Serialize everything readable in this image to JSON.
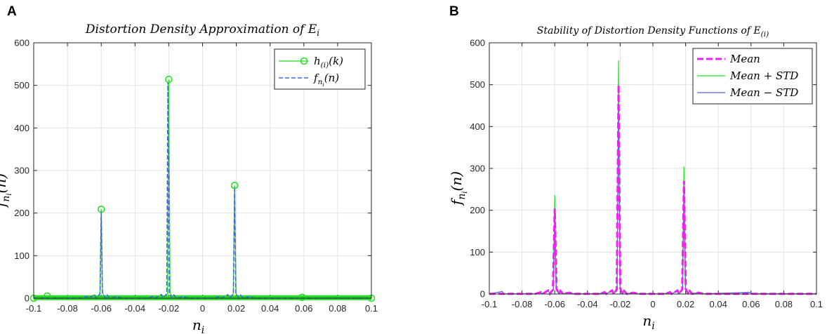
{
  "chart_data": [
    {
      "panel": "A",
      "type": "line",
      "title": "Distortion Density Approximation of E_i",
      "xlabel": "n_i",
      "ylabel": "f_{n_i}(n)",
      "xlim": [
        -0.1,
        0.1
      ],
      "ylim": [
        0,
        600
      ],
      "grid": true,
      "legend_position": "top-right",
      "x_ticks": [
        "-0.1",
        "-0.08",
        "-0.06",
        "-0.04",
        "-0.02",
        "0",
        "0.02",
        "0.04",
        "0.06",
        "0.08",
        "0.1"
      ],
      "y_ticks": [
        "0",
        "100",
        "200",
        "300",
        "400",
        "500",
        "600"
      ],
      "legend": [
        {
          "key": "hk",
          "label": "h_(i)(k)",
          "color": "#22dd22",
          "style": "solid-circle"
        },
        {
          "key": "fn",
          "label": "f_{n_i}(n)",
          "color": "#4466dd",
          "style": "dashed"
        }
      ],
      "series": [
        {
          "name": "h_(i)(k)",
          "color": "#22dd22",
          "x": [
            -0.092,
            -0.06,
            -0.02,
            0.019,
            0.059
          ],
          "values": [
            5,
            209,
            514,
            265,
            2
          ]
        },
        {
          "name": "f_{n_i}(n)",
          "color": "#4466dd",
          "x": [
            -0.06,
            -0.0205,
            0.019
          ],
          "values": [
            205,
            508,
            262
          ]
        }
      ]
    },
    {
      "panel": "B",
      "type": "line",
      "title": "Stability of Distortion Density Functions of E_(i)",
      "xlabel": "n_i",
      "ylabel": "f_{n_i}(n)",
      "xlim": [
        -0.1,
        0.1
      ],
      "ylim": [
        0,
        600
      ],
      "grid": true,
      "legend_position": "top-right",
      "x_ticks": [
        "-0.1",
        "-0.08",
        "-0.06",
        "-0.04",
        "-0.02",
        "0",
        "0.02",
        "0.04",
        "0.06",
        "0.08",
        "0.1"
      ],
      "y_ticks": [
        "0",
        "100",
        "200",
        "300",
        "400",
        "500",
        "600"
      ],
      "legend": [
        {
          "key": "mean",
          "label": "Mean",
          "color": "#ee22ee",
          "style": "dashed"
        },
        {
          "key": "plus",
          "label": "Mean + STD",
          "color": "#22dd22",
          "style": "solid"
        },
        {
          "key": "minus",
          "label": "Mean − STD",
          "color": "#5566dd",
          "style": "solid"
        }
      ],
      "series": [
        {
          "name": "Mean + STD",
          "color": "#22dd22",
          "x": [
            -0.06,
            -0.021,
            0.019
          ],
          "values": [
            236,
            558,
            304
          ]
        },
        {
          "name": "Mean − STD",
          "color": "#5566dd",
          "x": [
            -0.06,
            -0.021,
            0.019
          ],
          "values": [
            172,
            452,
            240
          ]
        },
        {
          "name": "Mean",
          "color": "#ee22ee",
          "x": [
            -0.06,
            -0.021,
            0.019
          ],
          "values": [
            204,
            500,
            270
          ]
        }
      ]
    }
  ]
}
